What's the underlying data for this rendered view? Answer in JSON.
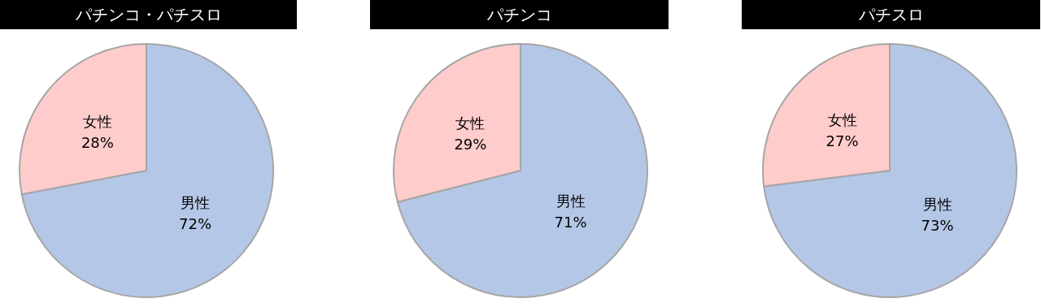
{
  "chart_data": [
    {
      "type": "pie",
      "title": "パチンコ・パチスロ",
      "categories": [
        "男性",
        "女性"
      ],
      "values": [
        72,
        28
      ],
      "colors": [
        "#b4c7e7",
        "#ffcccc"
      ],
      "value_labels": [
        "72%",
        "28%"
      ]
    },
    {
      "type": "pie",
      "title": "パチンコ",
      "categories": [
        "男性",
        "女性"
      ],
      "values": [
        71,
        29
      ],
      "colors": [
        "#b4c7e7",
        "#ffcccc"
      ],
      "value_labels": [
        "71%",
        "29%"
      ]
    },
    {
      "type": "pie",
      "title": "パチスロ",
      "categories": [
        "男性",
        "女性"
      ],
      "values": [
        73,
        27
      ],
      "colors": [
        "#b4c7e7",
        "#ffcccc"
      ],
      "value_labels": [
        "73%",
        "27%"
      ]
    }
  ]
}
